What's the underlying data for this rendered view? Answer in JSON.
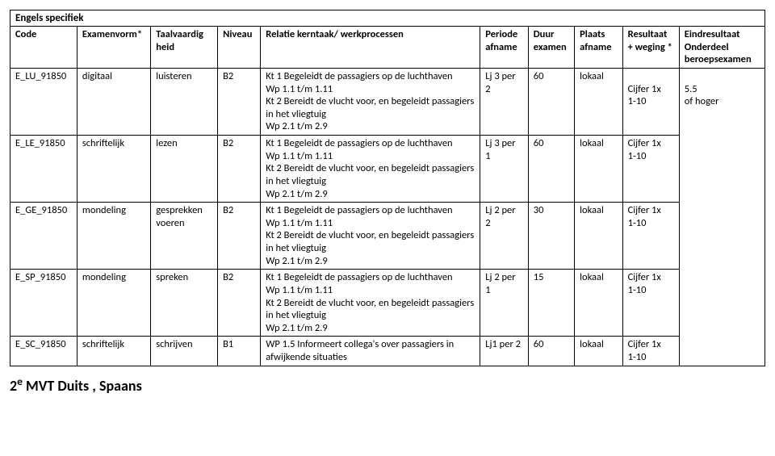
{
  "tableTitle": "Engels specifiek",
  "headers": {
    "code": "Code",
    "vorm": "Examenvorm*",
    "vaard": "Taalvaardig heid",
    "niveau": "Niveau",
    "relatie": "Relatie kerntaak/ werkprocessen",
    "periode": "Periode afname",
    "duur": "Duur examen",
    "plaats": "Plaats afname",
    "result": "Resultaat + weging *",
    "eind": "Eindresultaat Onderdeel beroepsexamen"
  },
  "relatieBlockA": "Kt 1 Begeleidt de passagiers op de luchthaven\nWp 1.1 t/m 1.11\nKt 2 Bereidt de vlucht voor, en begeleidt passagiers in het vliegtuig\nWp 2.1 t/m 2.9",
  "rows": [
    {
      "code": "E_LU_91850",
      "vorm": "digitaal",
      "vaard": "luisteren",
      "niveau": "B2",
      "periode": "Lj 3 per 2",
      "duur": "60",
      "plaats": "lokaal",
      "result": "\nCijfer 1x\n1-10"
    },
    {
      "code": "E_LE_91850",
      "vorm": "schriftelijk",
      "vaard": "lezen",
      "niveau": "B2",
      "periode": "Lj 3 per 1",
      "duur": "60",
      "plaats": "lokaal",
      "result": "Cijfer 1x\n1-10"
    },
    {
      "code": "E_GE_91850",
      "vorm": "mondeling",
      "vaard": "gesprekken voeren",
      "niveau": "B2",
      "periode": "Lj 2 per 2",
      "duur": "30",
      "plaats": "lokaal",
      "result": "Cijfer 1x\n1-10"
    },
    {
      "code": "E_SP_91850",
      "vorm": "mondeling",
      "vaard": "spreken",
      "niveau": "B2",
      "periode": "Lj 2 per 1",
      "duur": "15",
      "plaats": "lokaal",
      "result": "Cijfer 1x\n1-10"
    },
    {
      "code": "E_SC_91850",
      "vorm": "schriftelijk",
      "vaard": "schrijven",
      "niveau": "B1",
      "periode": "Lj1 per 2",
      "duur": "60",
      "plaats": "lokaal",
      "result": "Cijfer 1x\n1-10"
    }
  ],
  "relatieLast": "WP 1.5 Informeert collega's over passagiers in afwijkende situaties",
  "eindResult": "\n5.5\nof hoger",
  "footerHeadingPrefix": "2",
  "footerHeadingSup": "e",
  "footerHeadingRest": " MVT Duits , Spaans"
}
